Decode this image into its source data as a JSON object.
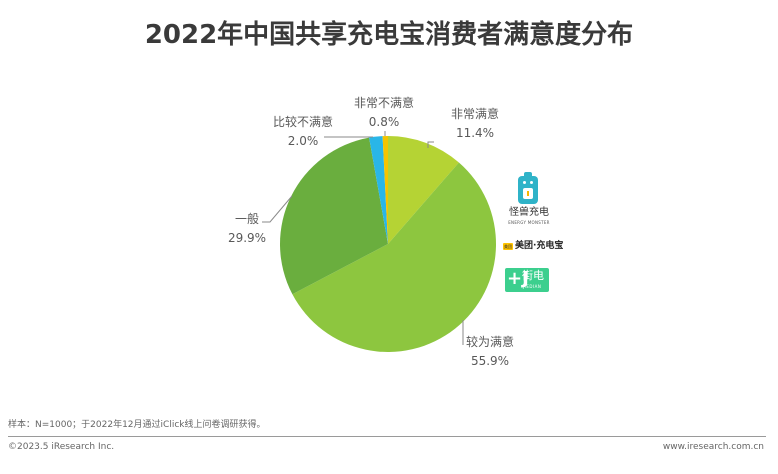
{
  "title": "2022年中国共享充电宝消费者满意度分布",
  "chart_data": {
    "type": "pie",
    "title": "2022年中国共享充电宝消费者满意度分布",
    "categories": [
      "非常满意",
      "较为满意",
      "一般",
      "比较不满意",
      "非常不满意"
    ],
    "values": [
      11.4,
      55.9,
      29.9,
      2.0,
      0.8
    ],
    "unit": "%",
    "colors": [
      "#b5d334",
      "#8dc63f",
      "#6aae3e",
      "#29b6e8",
      "#f5c400"
    ],
    "start_angle_deg": 0,
    "direction": "clockwise",
    "legend": "none",
    "data_labels": [
      {
        "name": "非常满意",
        "value": "11.4%"
      },
      {
        "name": "较为满意",
        "value": "55.9%"
      },
      {
        "name": "一般",
        "value": "29.9%"
      },
      {
        "name": "比较不满意",
        "value": "2.0%"
      },
      {
        "name": "非常不满意",
        "value": "0.8%"
      }
    ]
  },
  "brands": {
    "energy_monster": {
      "name": "怪兽充电",
      "sub": "ENERGY MONSTER"
    },
    "meituan": {
      "badge": "美团",
      "name": "美团·充电宝"
    },
    "jiedian": {
      "glyph": "+J",
      "name": "街电",
      "sub": "JIEDIAN"
    }
  },
  "footer": {
    "note": "样本：N=1000；于2022年12月通过iClick线上问卷调研获得。",
    "copyright": "©2023.5 iResearch Inc.",
    "website": "www.iresearch.com.cn"
  }
}
